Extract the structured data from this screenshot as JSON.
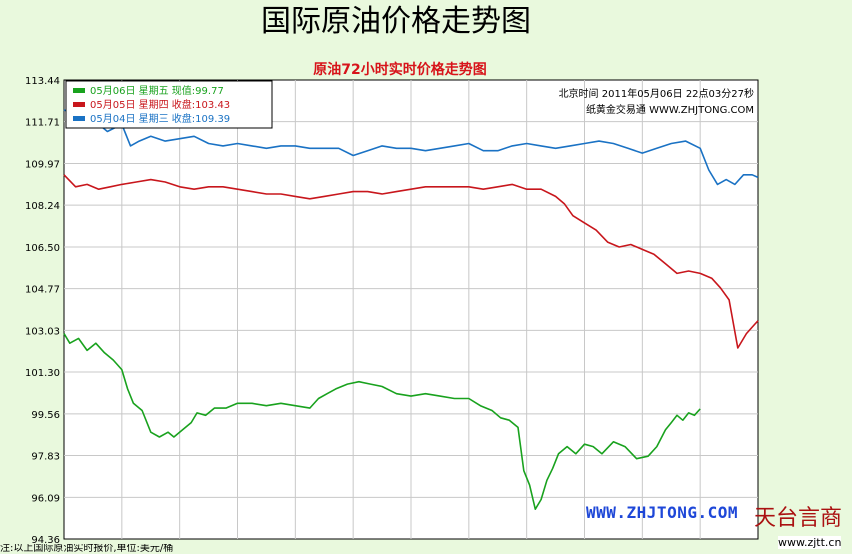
{
  "page_title": "国际原油价格走势图",
  "chart_data": {
    "type": "line",
    "title": "原油72小时实时价格走势图",
    "timestamp_line1": "北京时间 2011年05月06日 22点03分27秒",
    "timestamp_line2": "纸黄金交易通 WWW.ZHJTONG.COM",
    "xlim": [
      0,
      24
    ],
    "ylim": [
      94.36,
      113.44
    ],
    "x_ticks": [
      0,
      2,
      4,
      6,
      8,
      10,
      12,
      14,
      16,
      18,
      20,
      22
    ],
    "y_ticks": [
      "113.44",
      "111.71",
      "109.97",
      "108.24",
      "106.50",
      "104.77",
      "103.03",
      "101.30",
      "99.56",
      "97.83",
      "96.09",
      "94.36"
    ],
    "series": [
      {
        "name": "05月06日 星期五 现值:99.77",
        "color": "#19a21e",
        "x": [
          0,
          0.2,
          0.5,
          0.8,
          1.1,
          1.4,
          1.7,
          2.0,
          2.2,
          2.4,
          2.7,
          3.0,
          3.3,
          3.6,
          3.8,
          4.1,
          4.4,
          4.6,
          4.9,
          5.2,
          5.6,
          6.0,
          6.5,
          7.0,
          7.5,
          8.0,
          8.5,
          8.8,
          9.1,
          9.4,
          9.8,
          10.2,
          10.6,
          11.0,
          11.5,
          12.0,
          12.5,
          13.0,
          13.5,
          14.0,
          14.4,
          14.8,
          15.1,
          15.4,
          15.7,
          15.9,
          16.1,
          16.3,
          16.5,
          16.7,
          16.9,
          17.1,
          17.4,
          17.7,
          18.0,
          18.3,
          18.6,
          19.0,
          19.4,
          19.8,
          20.2,
          20.5,
          20.8,
          21.0,
          21.2,
          21.4,
          21.6,
          21.8,
          22.0
        ],
        "y": [
          102.9,
          102.5,
          102.7,
          102.2,
          102.5,
          102.1,
          101.8,
          101.4,
          100.6,
          100.0,
          99.7,
          98.8,
          98.6,
          98.8,
          98.6,
          98.9,
          99.2,
          99.6,
          99.5,
          99.8,
          99.8,
          100.0,
          100.0,
          99.9,
          100.0,
          99.9,
          99.8,
          100.2,
          100.4,
          100.6,
          100.8,
          100.9,
          100.8,
          100.7,
          100.4,
          100.3,
          100.4,
          100.3,
          100.2,
          100.2,
          99.9,
          99.7,
          99.4,
          99.3,
          99.0,
          97.2,
          96.6,
          95.6,
          96.0,
          96.8,
          97.3,
          97.9,
          98.2,
          97.9,
          98.3,
          98.2,
          97.9,
          98.4,
          98.2,
          97.7,
          97.8,
          98.2,
          98.9,
          99.2,
          99.5,
          99.3,
          99.6,
          99.5,
          99.77
        ]
      },
      {
        "name": "05月05日 星期四 收盘:103.43",
        "color": "#c8161c",
        "x": [
          0,
          0.4,
          0.8,
          1.2,
          1.6,
          2.0,
          2.5,
          3.0,
          3.5,
          4.0,
          4.5,
          5.0,
          5.5,
          6.0,
          6.5,
          7.0,
          7.5,
          8.0,
          8.5,
          9.0,
          9.5,
          10.0,
          10.5,
          11.0,
          11.5,
          12.0,
          12.5,
          13.0,
          13.5,
          14.0,
          14.5,
          15.0,
          15.5,
          16.0,
          16.5,
          17.0,
          17.3,
          17.6,
          18.0,
          18.4,
          18.8,
          19.2,
          19.6,
          20.0,
          20.4,
          20.8,
          21.2,
          21.6,
          22.0,
          22.4,
          22.7,
          23.0,
          23.3,
          23.6,
          23.9,
          24.0
        ],
        "y": [
          109.5,
          109.0,
          109.1,
          108.9,
          109.0,
          109.1,
          109.2,
          109.3,
          109.2,
          109.0,
          108.9,
          109.0,
          109.0,
          108.9,
          108.8,
          108.7,
          108.7,
          108.6,
          108.5,
          108.6,
          108.7,
          108.8,
          108.8,
          108.7,
          108.8,
          108.9,
          109.0,
          109.0,
          109.0,
          109.0,
          108.9,
          109.0,
          109.1,
          108.9,
          108.9,
          108.6,
          108.3,
          107.8,
          107.5,
          107.2,
          106.7,
          106.5,
          106.6,
          106.4,
          106.2,
          105.8,
          105.4,
          105.5,
          105.4,
          105.2,
          104.8,
          104.3,
          102.3,
          102.9,
          103.3,
          103.43
        ]
      },
      {
        "name": "05月04日 星期三 收盘:109.39",
        "color": "#1a72c4",
        "x": [
          0,
          0.5,
          1.0,
          1.5,
          2.0,
          2.3,
          2.6,
          3.0,
          3.5,
          4.0,
          4.5,
          5.0,
          5.5,
          6.0,
          6.5,
          7.0,
          7.5,
          8.0,
          8.5,
          9.0,
          9.5,
          10.0,
          10.5,
          11.0,
          11.5,
          12.0,
          12.5,
          13.0,
          13.5,
          14.0,
          14.5,
          15.0,
          15.5,
          16.0,
          16.5,
          17.0,
          17.5,
          18.0,
          18.5,
          19.0,
          19.5,
          20.0,
          20.5,
          21.0,
          21.5,
          22.0,
          22.3,
          22.6,
          22.9,
          23.2,
          23.5,
          23.8,
          24.0
        ],
        "y": [
          112.2,
          111.9,
          111.8,
          111.3,
          111.6,
          110.7,
          110.9,
          111.1,
          110.9,
          111.0,
          111.1,
          110.8,
          110.7,
          110.8,
          110.7,
          110.6,
          110.7,
          110.7,
          110.6,
          110.6,
          110.6,
          110.3,
          110.5,
          110.7,
          110.6,
          110.6,
          110.5,
          110.6,
          110.7,
          110.8,
          110.5,
          110.5,
          110.7,
          110.8,
          110.7,
          110.6,
          110.7,
          110.8,
          110.9,
          110.8,
          110.6,
          110.4,
          110.6,
          110.8,
          110.9,
          110.6,
          109.7,
          109.1,
          109.3,
          109.1,
          109.5,
          109.5,
          109.39
        ]
      }
    ]
  },
  "watermark_site": "WWW.ZHJTONG.COM",
  "logo_text": "天台言商",
  "logo_url": "www.zjtt.cn",
  "footer_note": "注:以上国际原油实时报价,单位:美元/桶"
}
